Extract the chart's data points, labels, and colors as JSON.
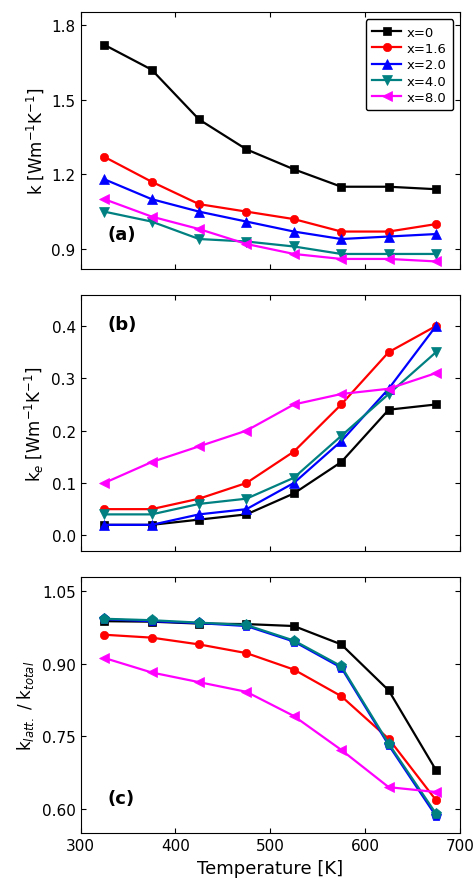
{
  "temp": [
    325,
    375,
    425,
    475,
    525,
    575,
    625,
    675
  ],
  "panel_a": {
    "title": "(a)",
    "ylim": [
      0.82,
      1.85
    ],
    "yticks": [
      0.9,
      1.2,
      1.5,
      1.8
    ],
    "series": [
      {
        "label": "x=0",
        "color": "#000000",
        "marker": "s",
        "markersize": 6,
        "values": [
          1.72,
          1.62,
          1.42,
          1.3,
          1.22,
          1.15,
          1.15,
          1.14
        ]
      },
      {
        "label": "x=1.6",
        "color": "#ff0000",
        "marker": "o",
        "markersize": 6,
        "values": [
          1.27,
          1.17,
          1.08,
          1.05,
          1.02,
          0.97,
          0.97,
          1.0
        ]
      },
      {
        "label": "x=2.0",
        "color": "#0000ff",
        "marker": "^",
        "markersize": 7,
        "values": [
          1.18,
          1.1,
          1.05,
          1.01,
          0.97,
          0.94,
          0.95,
          0.96
        ]
      },
      {
        "label": "x=4.0",
        "color": "#008080",
        "marker": "v",
        "markersize": 7,
        "values": [
          1.05,
          1.01,
          0.94,
          0.93,
          0.91,
          0.88,
          0.88,
          0.88
        ]
      },
      {
        "label": "x=8.0",
        "color": "#ff00ff",
        "marker": "<",
        "markersize": 7,
        "values": [
          1.1,
          1.03,
          0.98,
          0.92,
          0.88,
          0.86,
          0.86,
          0.85
        ]
      }
    ]
  },
  "panel_b": {
    "title": "(b)",
    "ylim": [
      -0.03,
      0.46
    ],
    "yticks": [
      0.0,
      0.1,
      0.2,
      0.3,
      0.4
    ],
    "series": [
      {
        "label": "x=0",
        "color": "#000000",
        "marker": "s",
        "markersize": 6,
        "values": [
          0.02,
          0.02,
          0.03,
          0.04,
          0.08,
          0.14,
          0.24,
          0.25
        ]
      },
      {
        "label": "x=1.6",
        "color": "#ff0000",
        "marker": "o",
        "markersize": 6,
        "values": [
          0.05,
          0.05,
          0.07,
          0.1,
          0.16,
          0.25,
          0.35,
          0.4
        ]
      },
      {
        "label": "x=2.0",
        "color": "#0000ff",
        "marker": "^",
        "markersize": 7,
        "values": [
          0.02,
          0.02,
          0.04,
          0.05,
          0.1,
          0.18,
          0.28,
          0.4
        ]
      },
      {
        "label": "x=4.0",
        "color": "#008080",
        "marker": "v",
        "markersize": 7,
        "values": [
          0.04,
          0.04,
          0.06,
          0.07,
          0.11,
          0.19,
          0.27,
          0.35
        ]
      },
      {
        "label": "x=8.0",
        "color": "#ff00ff",
        "marker": "<",
        "markersize": 7,
        "values": [
          0.1,
          0.14,
          0.17,
          0.2,
          0.25,
          0.27,
          0.28,
          0.31
        ]
      }
    ]
  },
  "panel_c": {
    "title": "(c)",
    "ylim": [
      0.55,
      1.08
    ],
    "yticks": [
      0.6,
      0.75,
      0.9,
      1.05
    ],
    "series": [
      {
        "label": "x=0",
        "color": "#000000",
        "marker": "s",
        "markersize": 6,
        "values": [
          0.988,
          0.987,
          0.983,
          0.982,
          0.978,
          0.94,
          0.845,
          0.68
        ]
      },
      {
        "label": "x=1.6",
        "color": "#ff0000",
        "marker": "o",
        "markersize": 6,
        "values": [
          0.96,
          0.954,
          0.94,
          0.922,
          0.888,
          0.833,
          0.745,
          0.618
        ]
      },
      {
        "label": "x=2.0",
        "color": "#0000ff",
        "marker": "p",
        "markersize": 8,
        "values": [
          0.992,
          0.988,
          0.984,
          0.978,
          0.946,
          0.892,
          0.732,
          0.585
        ]
      },
      {
        "label": "x=4.0",
        "color": "#008080",
        "marker": "p",
        "markersize": 8,
        "values": [
          0.993,
          0.99,
          0.985,
          0.98,
          0.948,
          0.895,
          0.735,
          0.59
        ]
      },
      {
        "label": "x=8.0",
        "color": "#ff00ff",
        "marker": "<",
        "markersize": 7,
        "values": [
          0.912,
          0.882,
          0.862,
          0.842,
          0.792,
          0.722,
          0.645,
          0.635
        ]
      }
    ]
  },
  "xlabel": "Temperature [K]",
  "xlim": [
    300,
    700
  ],
  "xticks": [
    300,
    400,
    500,
    600,
    700
  ],
  "legend_labels": [
    "x=0",
    "x=1.6",
    "x=2.0",
    "x=4.0",
    "x=8.0"
  ],
  "background_color": "#ffffff"
}
